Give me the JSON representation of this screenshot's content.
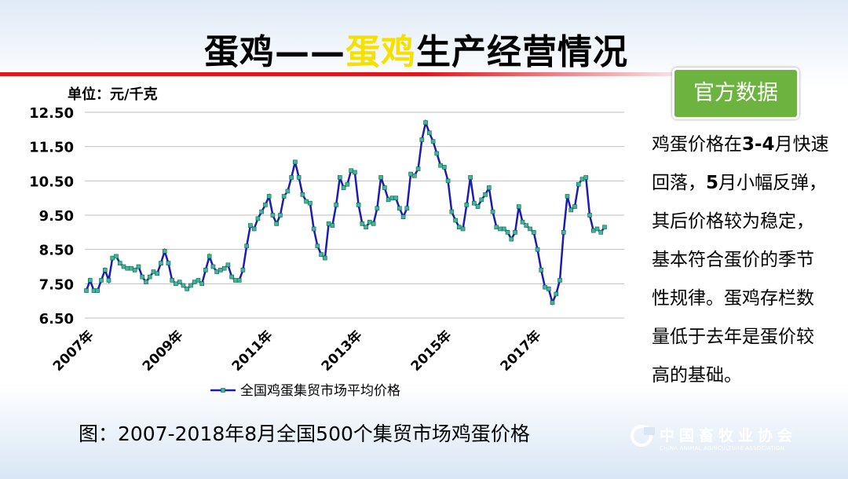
{
  "title_parts": [
    {
      "text": "蛋鸡——",
      "color": "#000000"
    },
    {
      "text": "蛋鸡",
      "color": "#f5e000"
    },
    {
      "text": "生产经营情况",
      "color": "#000000"
    }
  ],
  "badge": "官方数据",
  "note": [
    {
      "text": "鸡蛋价格在",
      "bold": false
    },
    {
      "text": "3-4",
      "bold": true
    },
    {
      "text": "月快速回落，",
      "bold": false
    },
    {
      "text": "5",
      "bold": true
    },
    {
      "text": "月小幅反弹，其后价格较为稳定，基本符合蛋价的季节性规律。蛋鸡存栏数量低于去年是蛋价较高的基础。",
      "bold": false
    }
  ],
  "caption": "图：2007-2018年8月全国500个集贸市场鸡蛋价格",
  "logo": {
    "name": "中国畜牧业协会",
    "english": "CHINA ANIMAL AGRICULTURE ASSOCIATION"
  },
  "chart_data": {
    "type": "line",
    "unit_label": "单位：元/千克",
    "ylim": [
      6.5,
      12.5
    ],
    "yticks": [
      {
        "value": 6.5,
        "label": "6.50"
      },
      {
        "value": 7.5,
        "label": "7.50"
      },
      {
        "value": 8.5,
        "label": "8.50"
      },
      {
        "value": 9.5,
        "label": "9.50"
      },
      {
        "value": 10.5,
        "label": "10.50"
      },
      {
        "value": 11.5,
        "label": "11.50"
      },
      {
        "value": 12.5,
        "label": "12.50"
      }
    ],
    "grid": true,
    "categories": [
      "2007年",
      null,
      null,
      null,
      null,
      null,
      null,
      null,
      null,
      null,
      null,
      null,
      null,
      null,
      null,
      null,
      null,
      null,
      null,
      null,
      null,
      null,
      null,
      null,
      "2009年",
      null,
      null,
      null,
      null,
      null,
      null,
      null,
      null,
      null,
      null,
      null,
      null,
      null,
      null,
      null,
      null,
      null,
      null,
      null,
      null,
      null,
      null,
      null,
      "2011年",
      null,
      null,
      null,
      null,
      null,
      null,
      null,
      null,
      null,
      null,
      null,
      null,
      null,
      null,
      null,
      null,
      null,
      null,
      null,
      null,
      null,
      null,
      null,
      "2013年",
      null,
      null,
      null,
      null,
      null,
      null,
      null,
      null,
      null,
      null,
      null,
      null,
      null,
      null,
      null,
      null,
      null,
      null,
      null,
      null,
      null,
      null,
      null,
      "2015年",
      null,
      null,
      null,
      null,
      null,
      null,
      null,
      null,
      null,
      null,
      null,
      null,
      null,
      null,
      null,
      null,
      null,
      null,
      null,
      null,
      null,
      null,
      null,
      "2017年",
      null,
      null,
      null,
      null,
      null,
      null,
      null,
      null,
      null,
      null,
      null,
      null,
      null,
      null,
      null,
      null,
      null,
      null,
      null
    ],
    "series": [
      {
        "name": "全国鸡蛋集贸市场平均价格",
        "color": "#1c1cb0",
        "marker_color": "#3fb89a",
        "values": [
          7.3,
          7.6,
          7.3,
          7.3,
          7.6,
          7.9,
          7.6,
          8.25,
          8.3,
          8.1,
          8.0,
          7.95,
          7.95,
          7.9,
          8.0,
          7.7,
          7.55,
          7.7,
          7.85,
          7.8,
          8.1,
          8.45,
          8.1,
          7.6,
          7.5,
          7.55,
          7.45,
          7.35,
          7.45,
          7.55,
          7.6,
          7.5,
          7.9,
          8.3,
          8.0,
          7.85,
          7.9,
          7.95,
          8.05,
          7.7,
          7.6,
          7.6,
          7.9,
          8.6,
          9.2,
          9.1,
          9.4,
          9.6,
          9.8,
          10.05,
          9.5,
          9.25,
          9.5,
          10.05,
          10.2,
          10.6,
          11.05,
          10.6,
          10.1,
          9.9,
          9.85,
          9.1,
          8.6,
          8.35,
          8.25,
          9.25,
          9.2,
          9.8,
          10.6,
          10.3,
          10.4,
          10.8,
          10.75,
          9.8,
          9.25,
          9.15,
          9.3,
          9.25,
          9.7,
          10.6,
          10.3,
          9.95,
          10.0,
          10.0,
          9.7,
          9.45,
          9.7,
          10.7,
          10.65,
          10.85,
          11.7,
          12.2,
          11.9,
          11.65,
          11.3,
          10.95,
          10.9,
          10.5,
          9.6,
          9.35,
          9.15,
          9.1,
          9.8,
          10.6,
          9.85,
          9.75,
          9.95,
          10.1,
          10.3,
          9.6,
          9.15,
          9.1,
          9.1,
          9.0,
          8.8,
          9.0,
          9.75,
          9.3,
          9.2,
          9.1,
          9.0,
          8.5,
          7.9,
          7.4,
          7.35,
          6.95,
          7.2,
          7.6,
          9.0,
          10.05,
          9.65,
          9.75,
          10.4,
          10.55,
          10.6,
          9.5,
          9.05,
          9.1,
          9.0,
          9.15
        ]
      }
    ]
  }
}
